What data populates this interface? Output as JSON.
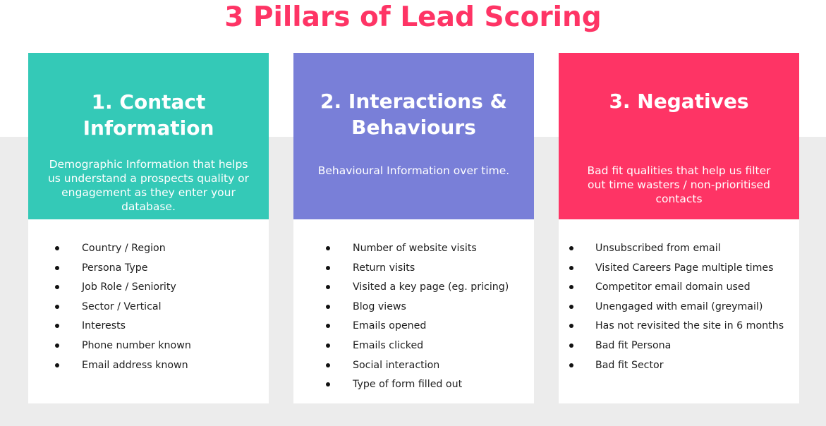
{
  "title": "3 Pillars of Lead Scoring",
  "colors": {
    "title": "#fe3465",
    "contact": "#34c9b7",
    "interactions": "#797fd8",
    "negatives": "#fe3465",
    "background_band": "#ececec"
  },
  "pillars": [
    {
      "title_lines": [
        "1. Contact",
        "Information"
      ],
      "description": "Demographic Information that helps us understand a prospects quality or engagement as they enter your database.",
      "items": [
        "Country / Region",
        "Persona Type",
        "Job Role / Seniority",
        "Sector / Vertical",
        "Interests",
        "Phone number known",
        "Email address known"
      ]
    },
    {
      "title_lines": [
        "2. Interactions &",
        "Behaviours"
      ],
      "description": "Behavioural Information over time.",
      "items": [
        "Number of website visits",
        "Return visits",
        "Visited a key page (eg. pricing)",
        "Blog views",
        "Emails opened",
        "Emails clicked",
        "Social interaction",
        "Type of form filled out"
      ]
    },
    {
      "title_lines": [
        "3. Negatives"
      ],
      "description": "Bad fit qualities that help us filter out time wasters / non-prioritised contacts",
      "items": [
        "Unsubscribed from email",
        "Visited Careers Page multiple times",
        "Competitor email domain used",
        "Unengaged with email (greymail)",
        "Has not revisited the site in 6 months",
        "Bad fit Persona",
        "Bad fit Sector"
      ]
    }
  ]
}
